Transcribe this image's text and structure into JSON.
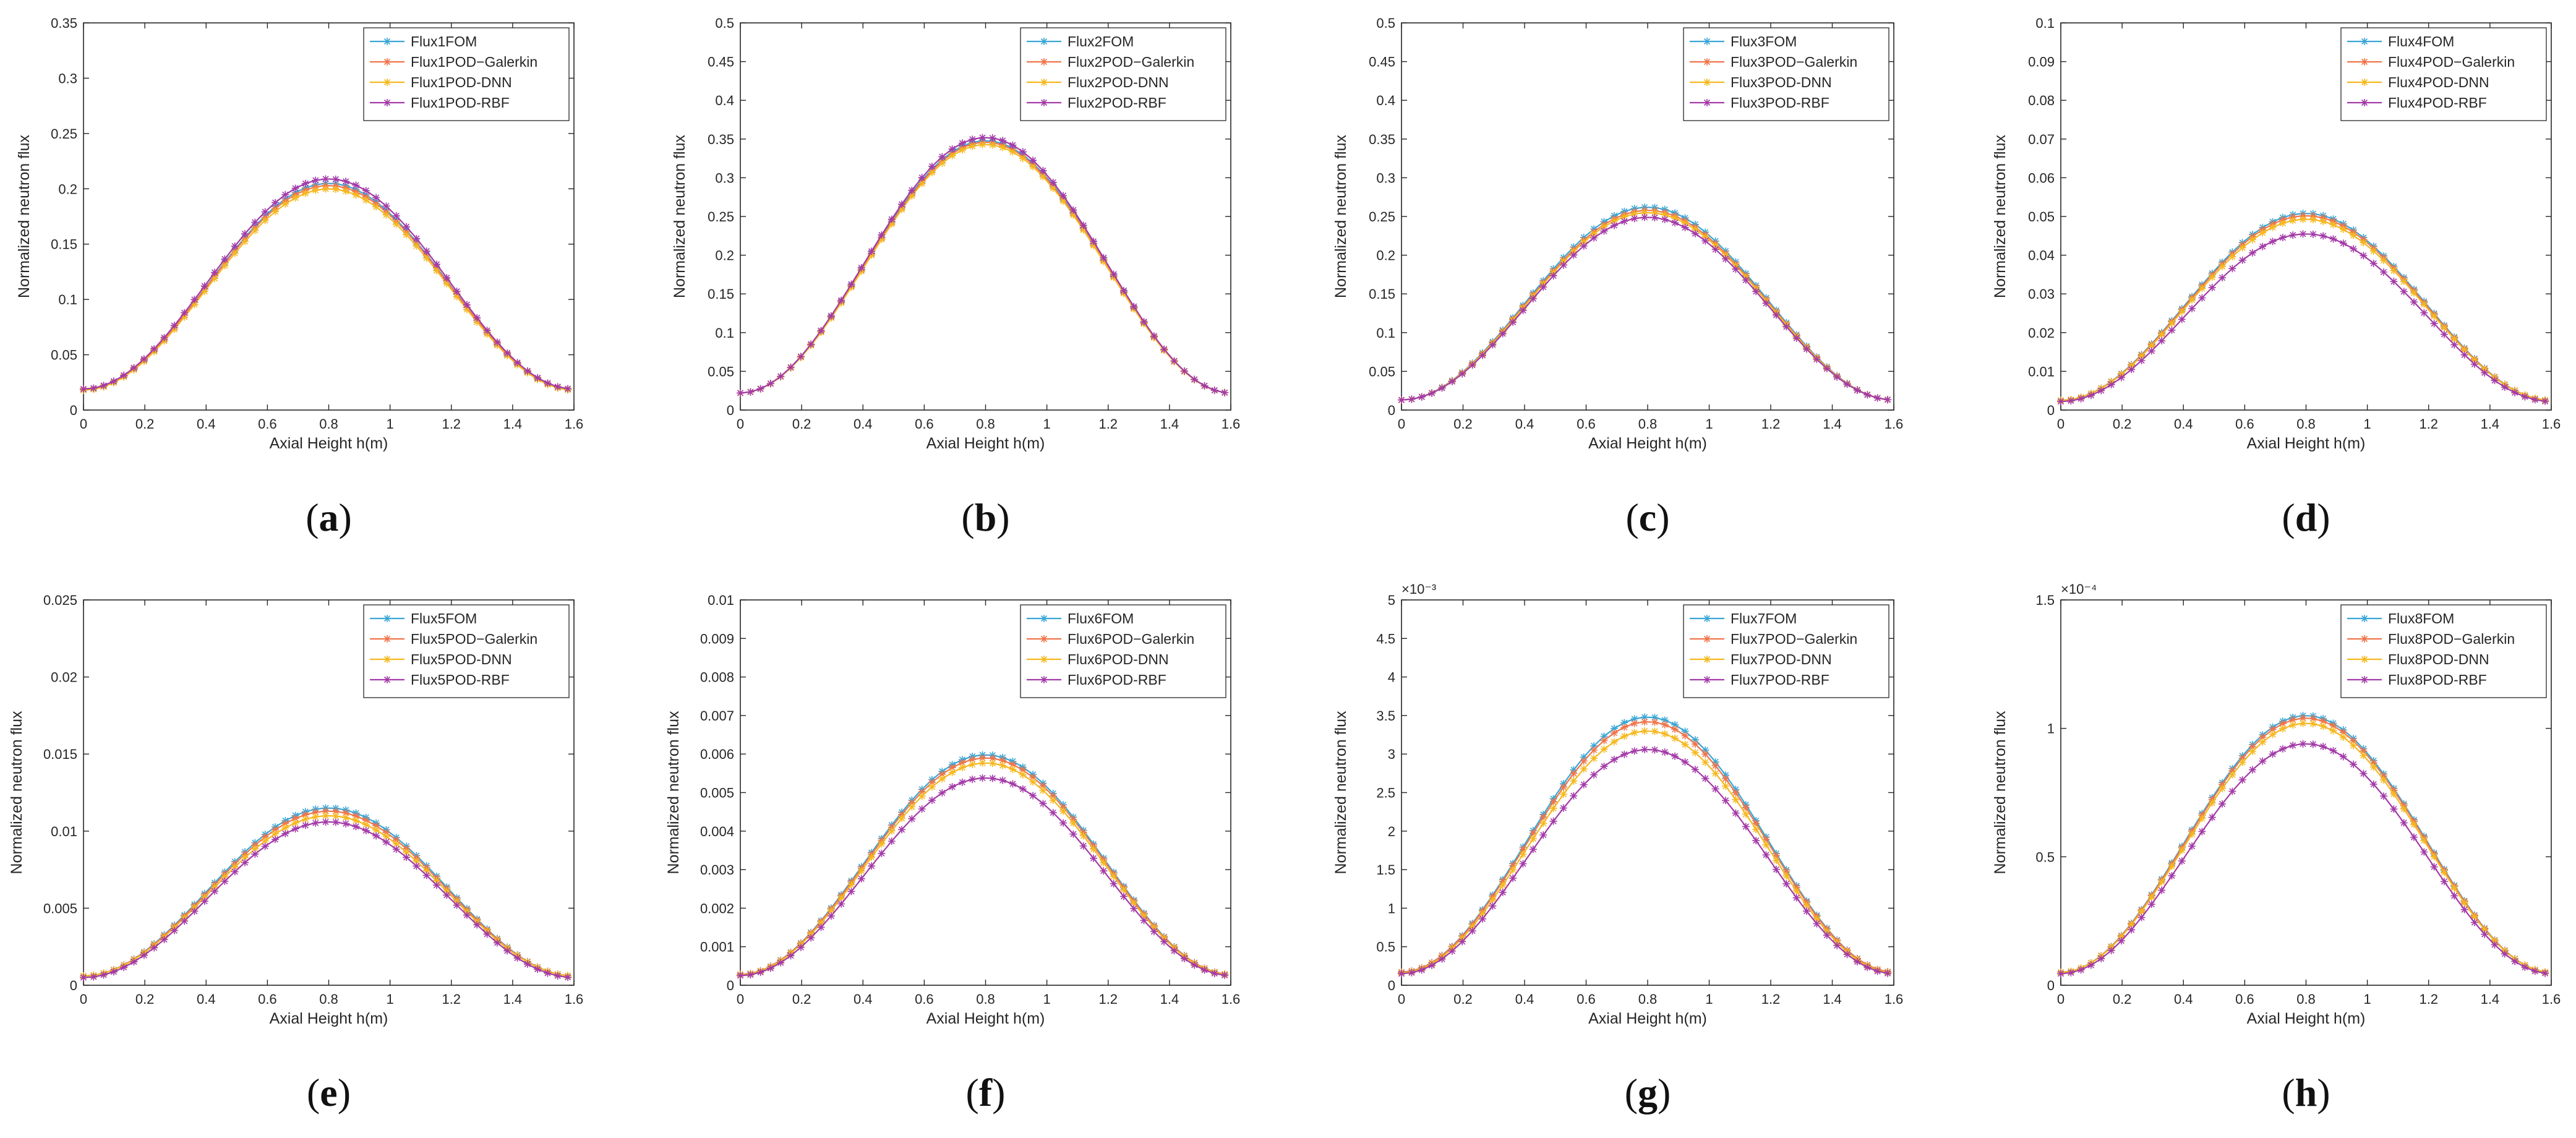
{
  "figure": {
    "panels": [
      {
        "caption_letter": "a",
        "x_label": "Axial Height h(m)",
        "y_label": "Normalized neutron flux",
        "exponent_label": ""
      },
      {
        "caption_letter": "b",
        "x_label": "Axial Height h(m)",
        "y_label": "Normalized neutron flux",
        "exponent_label": ""
      },
      {
        "caption_letter": "c",
        "x_label": "Axial Height h(m)",
        "y_label": "Normalized neutron flux",
        "exponent_label": ""
      },
      {
        "caption_letter": "d",
        "x_label": "Axial Height h(m)",
        "y_label": "Normalized neutron flux",
        "exponent_label": ""
      },
      {
        "caption_letter": "e",
        "x_label": "Axial Height h(m)",
        "y_label": "Normalized neutron flux",
        "exponent_label": ""
      },
      {
        "caption_letter": "f",
        "x_label": "Axial Height h(m)",
        "y_label": "Normalized neutron flux",
        "exponent_label": ""
      },
      {
        "caption_letter": "g",
        "x_label": "Axial Height h(m)",
        "y_label": "Normalized neutron flux",
        "exponent_label": "×10⁻³"
      },
      {
        "caption_letter": "h",
        "x_label": "Axial Height h(m)",
        "y_label": "Normalized neutron flux",
        "exponent_label": "×10⁻⁴"
      }
    ]
  },
  "colors": {
    "FOM": "#3aa6d6",
    "POD-Galerkin": "#f0744a",
    "POD-DNN": "#f5b81f",
    "POD-RBF": "#a33aa8",
    "axis": "#262626"
  },
  "chart_data": [
    {
      "type": "line",
      "title": "(a)",
      "xlabel": "Axial Height h(m)",
      "ylabel": "Normalized neutron flux",
      "xlim": [
        0,
        1.6
      ],
      "ylim": [
        0,
        0.35
      ],
      "xticks": [
        "0",
        "0.2",
        "0.4",
        "0.6",
        "0.8",
        "1",
        "1.2",
        "1.4",
        "1.6"
      ],
      "yticks": [
        "0",
        "0.05",
        "0.1",
        "0.15",
        "0.2",
        "0.25",
        "0.3",
        "0.35"
      ],
      "curve": {
        "x_start": 0,
        "x_end": 1.58,
        "x_peak": 0.8
      },
      "series": [
        {
          "name": "Flux1FOM",
          "method": "FOM",
          "edge": 0.018,
          "peak": 0.205
        },
        {
          "name": "Flux1POD−Galerkin",
          "method": "POD-Galerkin",
          "edge": 0.019,
          "peak": 0.203
        },
        {
          "name": "Flux1POD-DNN",
          "method": "POD-DNN",
          "edge": 0.018,
          "peak": 0.2
        },
        {
          "name": "Flux1POD-RBF",
          "method": "POD-RBF",
          "edge": 0.019,
          "peak": 0.209
        }
      ]
    },
    {
      "type": "line",
      "title": "(b)",
      "xlabel": "Axial Height h(m)",
      "ylabel": "Normalized neutron flux",
      "xlim": [
        0,
        1.6
      ],
      "ylim": [
        0,
        0.5
      ],
      "xticks": [
        "0",
        "0.2",
        "0.4",
        "0.6",
        "0.8",
        "1",
        "1.2",
        "1.4",
        "1.6"
      ],
      "yticks": [
        "0",
        "0.05",
        "0.1",
        "0.15",
        "0.2",
        "0.25",
        "0.3",
        "0.35",
        "0.4",
        "0.45",
        "0.5"
      ],
      "curve": {
        "x_start": 0,
        "x_end": 1.58,
        "x_peak": 0.8
      },
      "series": [
        {
          "name": "Flux2FOM",
          "method": "FOM",
          "edge": 0.022,
          "peak": 0.348
        },
        {
          "name": "Flux2POD−Galerkin",
          "method": "POD-Galerkin",
          "edge": 0.022,
          "peak": 0.346
        },
        {
          "name": "Flux2POD-DNN",
          "method": "POD-DNN",
          "edge": 0.022,
          "peak": 0.343
        },
        {
          "name": "Flux2POD-RBF",
          "method": "POD-RBF",
          "edge": 0.022,
          "peak": 0.352
        }
      ]
    },
    {
      "type": "line",
      "title": "(c)",
      "xlabel": "Axial Height h(m)",
      "ylabel": "Normalized neutron flux",
      "xlim": [
        0,
        1.6
      ],
      "ylim": [
        0,
        0.5
      ],
      "xticks": [
        "0",
        "0.2",
        "0.4",
        "0.6",
        "0.8",
        "1",
        "1.2",
        "1.4",
        "1.6"
      ],
      "yticks": [
        "0",
        "0.05",
        "0.1",
        "0.15",
        "0.2",
        "0.25",
        "0.3",
        "0.35",
        "0.4",
        "0.45",
        "0.5"
      ],
      "curve": {
        "x_start": 0,
        "x_end": 1.58,
        "x_peak": 0.8
      },
      "series": [
        {
          "name": "Flux3FOM",
          "method": "FOM",
          "edge": 0.013,
          "peak": 0.262
        },
        {
          "name": "Flux3POD−Galerkin",
          "method": "POD-Galerkin",
          "edge": 0.013,
          "peak": 0.258
        },
        {
          "name": "Flux3POD-DNN",
          "method": "POD-DNN",
          "edge": 0.013,
          "peak": 0.255
        },
        {
          "name": "Flux3POD-RBF",
          "method": "POD-RBF",
          "edge": 0.013,
          "peak": 0.249
        }
      ]
    },
    {
      "type": "line",
      "title": "(d)",
      "xlabel": "Axial Height h(m)",
      "ylabel": "Normalized neutron flux",
      "xlim": [
        0,
        1.6
      ],
      "ylim": [
        0,
        0.1
      ],
      "xticks": [
        "0",
        "0.2",
        "0.4",
        "0.6",
        "0.8",
        "1",
        "1.2",
        "1.4",
        "1.6"
      ],
      "yticks": [
        "0",
        "0.01",
        "0.02",
        "0.03",
        "0.04",
        "0.05",
        "0.06",
        "0.07",
        "0.08",
        "0.09",
        "0.1"
      ],
      "curve": {
        "x_start": 0,
        "x_end": 1.58,
        "x_peak": 0.8
      },
      "series": [
        {
          "name": "Flux4FOM",
          "method": "FOM",
          "edge": 0.0025,
          "peak": 0.0508
        },
        {
          "name": "Flux4POD−Galerkin",
          "method": "POD-Galerkin",
          "edge": 0.0025,
          "peak": 0.0502
        },
        {
          "name": "Flux4POD-DNN",
          "method": "POD-DNN",
          "edge": 0.0025,
          "peak": 0.0493
        },
        {
          "name": "Flux4POD-RBF",
          "method": "POD-RBF",
          "edge": 0.0022,
          "peak": 0.0455
        }
      ]
    },
    {
      "type": "line",
      "title": "(e)",
      "xlabel": "Axial Height h(m)",
      "ylabel": "Normalized neutron flux",
      "xlim": [
        0,
        1.6
      ],
      "ylim": [
        0,
        0.025
      ],
      "xticks": [
        "0",
        "0.2",
        "0.4",
        "0.6",
        "0.8",
        "1",
        "1.2",
        "1.4",
        "1.6"
      ],
      "yticks": [
        "0",
        "0.005",
        "0.01",
        "0.015",
        "0.02",
        "0.025"
      ],
      "curve": {
        "x_start": 0,
        "x_end": 1.58,
        "x_peak": 0.8
      },
      "series": [
        {
          "name": "Flux5FOM",
          "method": "FOM",
          "edge": 0.0006,
          "peak": 0.0115
        },
        {
          "name": "Flux5POD−Galerkin",
          "method": "POD-Galerkin",
          "edge": 0.0006,
          "peak": 0.0113
        },
        {
          "name": "Flux5POD-DNN",
          "method": "POD-DNN",
          "edge": 0.0006,
          "peak": 0.011
        },
        {
          "name": "Flux5POD-RBF",
          "method": "POD-RBF",
          "edge": 0.0005,
          "peak": 0.0106
        }
      ]
    },
    {
      "type": "line",
      "title": "(f)",
      "xlabel": "Axial Height h(m)",
      "ylabel": "Normalized neutron flux",
      "xlim": [
        0,
        1.6
      ],
      "ylim": [
        0,
        0.01
      ],
      "xticks": [
        "0",
        "0.2",
        "0.4",
        "0.6",
        "0.8",
        "1",
        "1.2",
        "1.4",
        "1.6"
      ],
      "yticks": [
        "0",
        "0.001",
        "0.002",
        "0.003",
        "0.004",
        "0.005",
        "0.006",
        "0.007",
        "0.008",
        "0.009",
        "0.01"
      ],
      "curve": {
        "x_start": 0,
        "x_end": 1.58,
        "x_peak": 0.8
      },
      "series": [
        {
          "name": "Flux6FOM",
          "method": "FOM",
          "edge": 0.00028,
          "peak": 0.00598
        },
        {
          "name": "Flux6POD−Galerkin",
          "method": "POD-Galerkin",
          "edge": 0.00028,
          "peak": 0.0059
        },
        {
          "name": "Flux6POD-DNN",
          "method": "POD-DNN",
          "edge": 0.00027,
          "peak": 0.00577
        },
        {
          "name": "Flux6POD-RBF",
          "method": "POD-RBF",
          "edge": 0.00025,
          "peak": 0.00538
        }
      ]
    },
    {
      "type": "line",
      "title": "(g)",
      "xlabel": "Axial Height h(m)",
      "ylabel": "Normalized neutron flux",
      "xlim": [
        0,
        1.6
      ],
      "ylim": [
        0,
        5
      ],
      "y_scale_label": "×10⁻³",
      "xticks": [
        "0",
        "0.2",
        "0.4",
        "0.6",
        "0.8",
        "1",
        "1.2",
        "1.4",
        "1.6"
      ],
      "yticks": [
        "0",
        "0.5",
        "1",
        "1.5",
        "2",
        "2.5",
        "3",
        "3.5",
        "4",
        "4.5",
        "5"
      ],
      "curve": {
        "x_start": 0,
        "x_end": 1.58,
        "x_peak": 0.8
      },
      "series": [
        {
          "name": "Flux7FOM",
          "method": "FOM",
          "edge": 0.17,
          "peak": 3.48
        },
        {
          "name": "Flux7POD−Galerkin",
          "method": "POD-Galerkin",
          "edge": 0.17,
          "peak": 3.42
        },
        {
          "name": "Flux7POD-DNN",
          "method": "POD-DNN",
          "edge": 0.16,
          "peak": 3.3
        },
        {
          "name": "Flux7POD-RBF",
          "method": "POD-RBF",
          "edge": 0.15,
          "peak": 3.06
        }
      ]
    },
    {
      "type": "line",
      "title": "(h)",
      "xlabel": "Axial Height h(m)",
      "ylabel": "Normalized neutron flux",
      "xlim": [
        0,
        1.6
      ],
      "ylim": [
        0,
        1.5
      ],
      "y_scale_label": "×10⁻⁴",
      "xticks": [
        "0",
        "0.2",
        "0.4",
        "0.6",
        "0.8",
        "1",
        "1.2",
        "1.4",
        "1.6"
      ],
      "yticks": [
        "0",
        "0.5",
        "1",
        "1.5"
      ],
      "curve": {
        "x_start": 0,
        "x_end": 1.58,
        "x_peak": 0.8
      },
      "series": [
        {
          "name": "Flux8FOM",
          "method": "FOM",
          "edge": 0.05,
          "peak": 1.05
        },
        {
          "name": "Flux8POD−Galerkin",
          "method": "POD-Galerkin",
          "edge": 0.05,
          "peak": 1.04
        },
        {
          "name": "Flux8POD-DNN",
          "method": "POD-DNN",
          "edge": 0.05,
          "peak": 1.02
        },
        {
          "name": "Flux8POD-RBF",
          "method": "POD-RBF",
          "edge": 0.045,
          "peak": 0.94
        }
      ]
    }
  ]
}
